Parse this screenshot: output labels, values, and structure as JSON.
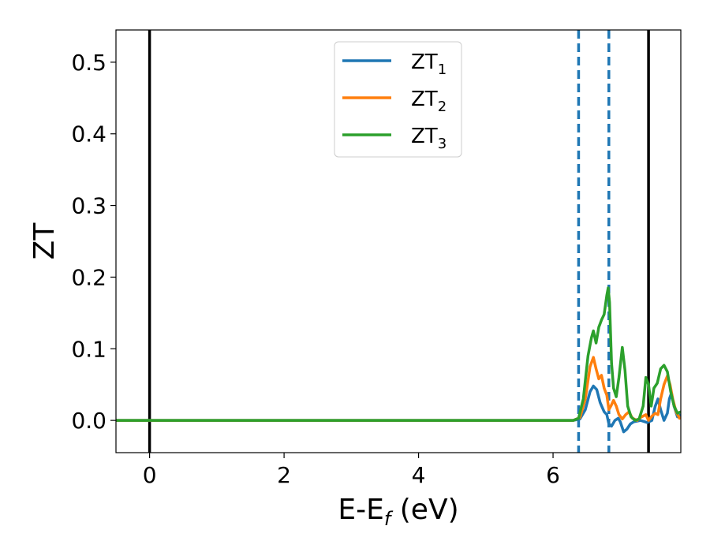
{
  "chart_data": {
    "type": "line",
    "xlabel": "E-E",
    "xlabel_sub": "f",
    "xlabel_unit": " (eV)",
    "ylabel": "ZT",
    "xlim": [
      -0.5,
      7.9
    ],
    "ylim": [
      -0.045,
      0.545
    ],
    "xticks": [
      0,
      2,
      4,
      6
    ],
    "xtick_labels": [
      "0",
      "2",
      "4",
      "6"
    ],
    "yticks": [
      0.0,
      0.1,
      0.2,
      0.3,
      0.4,
      0.5
    ],
    "ytick_labels": [
      "0.0",
      "0.1",
      "0.2",
      "0.3",
      "0.4",
      "0.5"
    ],
    "grid": false,
    "legend_position": "top-center",
    "vlines": [
      {
        "x": 0.0,
        "style": "solid",
        "color": "#000000"
      },
      {
        "x": 7.42,
        "style": "solid",
        "color": "#000000"
      },
      {
        "x": 6.38,
        "style": "dashed",
        "color": "#1f77b4"
      },
      {
        "x": 6.83,
        "style": "dashed",
        "color": "#1f77b4"
      }
    ],
    "series": [
      {
        "name": "ZT",
        "sub": "1",
        "color": "#1f77b4",
        "points": [
          [
            -0.5,
            0
          ],
          [
            6.3,
            0
          ],
          [
            6.4,
            0.002
          ],
          [
            6.48,
            0.015
          ],
          [
            6.55,
            0.04
          ],
          [
            6.6,
            0.048
          ],
          [
            6.65,
            0.043
          ],
          [
            6.7,
            0.025
          ],
          [
            6.76,
            0.012
          ],
          [
            6.8,
            0.008
          ],
          [
            6.83,
            -0.005
          ],
          [
            6.87,
            -0.008
          ],
          [
            6.92,
            0.0
          ],
          [
            6.97,
            0.003
          ],
          [
            7.0,
            -0.002
          ],
          [
            7.05,
            -0.016
          ],
          [
            7.1,
            -0.012
          ],
          [
            7.15,
            -0.005
          ],
          [
            7.2,
            -0.002
          ],
          [
            7.3,
            0.0
          ],
          [
            7.4,
            -0.003
          ],
          [
            7.47,
            0.0
          ],
          [
            7.52,
            0.02
          ],
          [
            7.56,
            0.03
          ],
          [
            7.6,
            0.015
          ],
          [
            7.65,
            0.0
          ],
          [
            7.7,
            0.01
          ],
          [
            7.73,
            0.03
          ],
          [
            7.76,
            0.038
          ],
          [
            7.8,
            0.02
          ],
          [
            7.85,
            0.005
          ],
          [
            7.9,
            0.008
          ]
        ]
      },
      {
        "name": "ZT",
        "sub": "2",
        "color": "#ff7f0e",
        "points": [
          [
            -0.5,
            0
          ],
          [
            6.3,
            0
          ],
          [
            6.4,
            0.004
          ],
          [
            6.48,
            0.03
          ],
          [
            6.55,
            0.075
          ],
          [
            6.6,
            0.088
          ],
          [
            6.64,
            0.072
          ],
          [
            6.68,
            0.058
          ],
          [
            6.72,
            0.063
          ],
          [
            6.76,
            0.045
          ],
          [
            6.8,
            0.035
          ],
          [
            6.83,
            0.015
          ],
          [
            6.86,
            0.02
          ],
          [
            6.9,
            0.028
          ],
          [
            6.94,
            0.02
          ],
          [
            6.98,
            0.008
          ],
          [
            7.03,
            0.002
          ],
          [
            7.08,
            0.008
          ],
          [
            7.13,
            0.012
          ],
          [
            7.18,
            0.003
          ],
          [
            7.25,
            0.0
          ],
          [
            7.3,
            0.004
          ],
          [
            7.38,
            0.008
          ],
          [
            7.42,
            0.0
          ],
          [
            7.47,
            0.006
          ],
          [
            7.52,
            0.01
          ],
          [
            7.56,
            0.008
          ],
          [
            7.6,
            0.03
          ],
          [
            7.65,
            0.05
          ],
          [
            7.7,
            0.062
          ],
          [
            7.74,
            0.05
          ],
          [
            7.78,
            0.03
          ],
          [
            7.83,
            0.012
          ],
          [
            7.88,
            0.003
          ],
          [
            7.9,
            0.005
          ]
        ]
      },
      {
        "name": "ZT",
        "sub": "3",
        "color": "#2ca02c",
        "points": [
          [
            -0.5,
            0
          ],
          [
            6.3,
            0
          ],
          [
            6.38,
            0.003
          ],
          [
            6.45,
            0.03
          ],
          [
            6.52,
            0.09
          ],
          [
            6.57,
            0.115
          ],
          [
            6.6,
            0.125
          ],
          [
            6.64,
            0.108
          ],
          [
            6.68,
            0.13
          ],
          [
            6.72,
            0.14
          ],
          [
            6.76,
            0.148
          ],
          [
            6.8,
            0.175
          ],
          [
            6.82,
            0.185
          ],
          [
            6.84,
            0.165
          ],
          [
            6.87,
            0.08
          ],
          [
            6.9,
            0.045
          ],
          [
            6.94,
            0.033
          ],
          [
            6.98,
            0.06
          ],
          [
            7.03,
            0.102
          ],
          [
            7.07,
            0.07
          ],
          [
            7.11,
            0.02
          ],
          [
            7.16,
            0.005
          ],
          [
            7.22,
            0.0
          ],
          [
            7.28,
            0.002
          ],
          [
            7.34,
            0.02
          ],
          [
            7.38,
            0.06
          ],
          [
            7.42,
            0.05
          ],
          [
            7.46,
            0.02
          ],
          [
            7.5,
            0.045
          ],
          [
            7.55,
            0.052
          ],
          [
            7.6,
            0.072
          ],
          [
            7.65,
            0.077
          ],
          [
            7.7,
            0.068
          ],
          [
            7.75,
            0.04
          ],
          [
            7.8,
            0.02
          ],
          [
            7.85,
            0.01
          ],
          [
            7.9,
            0.012
          ]
        ]
      }
    ]
  }
}
